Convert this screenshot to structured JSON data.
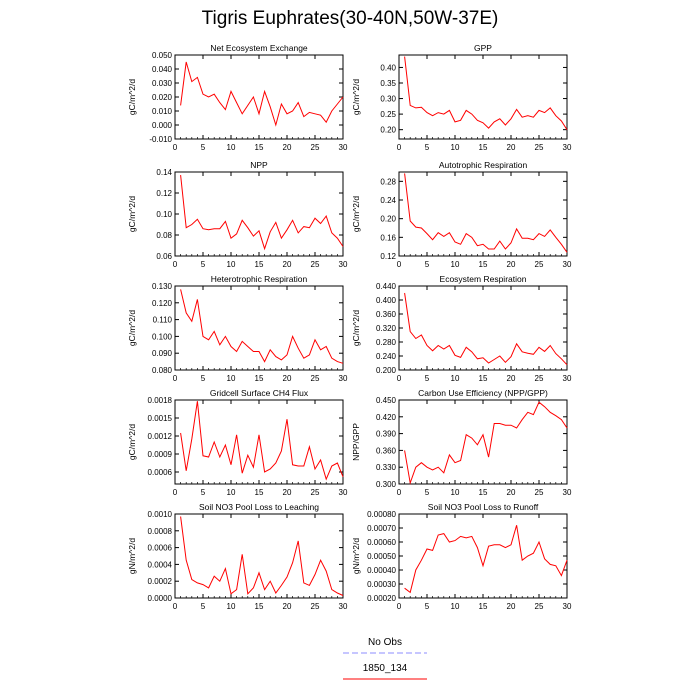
{
  "figure": {
    "title": "Tigris Euphrates(30-40N,50W-37E)"
  },
  "legend": {
    "entries": [
      {
        "label": "No Obs",
        "color": "#8c8cff",
        "style": "dashed"
      },
      {
        "label": "1850_134",
        "color": "#ff0000",
        "style": "solid"
      }
    ]
  },
  "chart_data": [
    {
      "type": "line",
      "title": "Net Ecosystem Exchange",
      "ylabel": "gC/m^2/d",
      "xlim": [
        0,
        30
      ],
      "ylim": [
        -0.01,
        0.05
      ],
      "yticks": [
        -0.01,
        0.0,
        0.01,
        0.02,
        0.03,
        0.04,
        0.05
      ],
      "ytick_labels": [
        "-0.010",
        "0.000",
        "0.010",
        "0.020",
        "0.030",
        "0.040",
        "0.050"
      ],
      "xticks": [
        0,
        5,
        10,
        15,
        20,
        25,
        30
      ],
      "series": [
        {
          "name": "1850_134",
          "x": [
            1,
            2,
            3,
            4,
            5,
            6,
            7,
            8,
            9,
            10,
            11,
            12,
            13,
            14,
            15,
            16,
            17,
            18,
            19,
            20,
            21,
            22,
            23,
            24,
            25,
            26,
            27,
            28,
            29,
            30
          ],
          "y": [
            0.014,
            0.045,
            0.031,
            0.034,
            0.022,
            0.02,
            0.022,
            0.016,
            0.011,
            0.024,
            0.016,
            0.008,
            0.014,
            0.02,
            0.008,
            0.024,
            0.013,
            0.0,
            0.015,
            0.008,
            0.01,
            0.016,
            0.006,
            0.009,
            0.008,
            0.007,
            0.002,
            0.01,
            0.015,
            0.02
          ]
        }
      ]
    },
    {
      "type": "line",
      "title": "GPP",
      "ylabel": "gC/m^2/d",
      "xlim": [
        0,
        30
      ],
      "ylim": [
        0.17,
        0.44
      ],
      "yticks": [
        0.2,
        0.25,
        0.3,
        0.35,
        0.4
      ],
      "ytick_labels": [
        "0.20",
        "0.25",
        "0.30",
        "0.35",
        "0.40"
      ],
      "xticks": [
        0,
        5,
        10,
        15,
        20,
        25,
        30
      ],
      "series": [
        {
          "name": "1850_134",
          "x": [
            1,
            2,
            3,
            4,
            5,
            6,
            7,
            8,
            9,
            10,
            11,
            12,
            13,
            14,
            15,
            16,
            17,
            18,
            19,
            20,
            21,
            22,
            23,
            24,
            25,
            26,
            27,
            28,
            29,
            30
          ],
          "y": [
            0.435,
            0.278,
            0.27,
            0.272,
            0.255,
            0.245,
            0.255,
            0.25,
            0.262,
            0.225,
            0.23,
            0.262,
            0.25,
            0.23,
            0.222,
            0.205,
            0.225,
            0.235,
            0.215,
            0.235,
            0.265,
            0.24,
            0.245,
            0.24,
            0.262,
            0.255,
            0.27,
            0.245,
            0.228,
            0.2
          ]
        }
      ]
    },
    {
      "type": "line",
      "title": "NPP",
      "ylabel": "gC/m^2/d",
      "xlim": [
        0,
        30
      ],
      "ylim": [
        0.06,
        0.14
      ],
      "yticks": [
        0.06,
        0.08,
        0.1,
        0.12,
        0.14
      ],
      "ytick_labels": [
        "0.06",
        "0.08",
        "0.10",
        "0.12",
        "0.14"
      ],
      "xticks": [
        0,
        5,
        10,
        15,
        20,
        25,
        30
      ],
      "series": [
        {
          "name": "1850_134",
          "x": [
            1,
            2,
            3,
            4,
            5,
            6,
            7,
            8,
            9,
            10,
            11,
            12,
            13,
            14,
            15,
            16,
            17,
            18,
            19,
            20,
            21,
            22,
            23,
            24,
            25,
            26,
            27,
            28,
            29,
            30
          ],
          "y": [
            0.137,
            0.087,
            0.09,
            0.095,
            0.086,
            0.085,
            0.086,
            0.086,
            0.093,
            0.077,
            0.081,
            0.094,
            0.087,
            0.079,
            0.084,
            0.067,
            0.083,
            0.092,
            0.077,
            0.085,
            0.094,
            0.082,
            0.088,
            0.087,
            0.096,
            0.091,
            0.098,
            0.082,
            0.077,
            0.069
          ]
        }
      ]
    },
    {
      "type": "line",
      "title": "Autotrophic Respiration",
      "ylabel": "gC/m^2/d",
      "xlim": [
        0,
        30
      ],
      "ylim": [
        0.12,
        0.3
      ],
      "yticks": [
        0.12,
        0.16,
        0.2,
        0.24,
        0.28
      ],
      "ytick_labels": [
        "0.12",
        "0.16",
        "0.20",
        "0.24",
        "0.28"
      ],
      "xticks": [
        0,
        5,
        10,
        15,
        20,
        25,
        30
      ],
      "series": [
        {
          "name": "1850_134",
          "x": [
            1,
            2,
            3,
            4,
            5,
            6,
            7,
            8,
            9,
            10,
            11,
            12,
            13,
            14,
            15,
            16,
            17,
            18,
            19,
            20,
            21,
            22,
            23,
            24,
            25,
            26,
            27,
            28,
            29,
            30
          ],
          "y": [
            0.297,
            0.195,
            0.182,
            0.18,
            0.168,
            0.155,
            0.17,
            0.162,
            0.17,
            0.15,
            0.145,
            0.168,
            0.16,
            0.142,
            0.145,
            0.135,
            0.135,
            0.152,
            0.135,
            0.148,
            0.178,
            0.158,
            0.158,
            0.155,
            0.168,
            0.162,
            0.176,
            0.16,
            0.145,
            0.128
          ]
        }
      ]
    },
    {
      "type": "line",
      "title": "Heterotrophic Respiration",
      "ylabel": "gC/m^2/d",
      "xlim": [
        0,
        30
      ],
      "ylim": [
        0.08,
        0.13
      ],
      "yticks": [
        0.08,
        0.09,
        0.1,
        0.11,
        0.12,
        0.13
      ],
      "ytick_labels": [
        "0.080",
        "0.090",
        "0.100",
        "0.110",
        "0.120",
        "0.130"
      ],
      "xticks": [
        0,
        5,
        10,
        15,
        20,
        25,
        30
      ],
      "series": [
        {
          "name": "1850_134",
          "x": [
            1,
            2,
            3,
            4,
            5,
            6,
            7,
            8,
            9,
            10,
            11,
            12,
            13,
            14,
            15,
            16,
            17,
            18,
            19,
            20,
            21,
            22,
            23,
            24,
            25,
            26,
            27,
            28,
            29,
            30
          ],
          "y": [
            0.128,
            0.114,
            0.109,
            0.122,
            0.1,
            0.098,
            0.103,
            0.095,
            0.1,
            0.094,
            0.091,
            0.097,
            0.094,
            0.091,
            0.091,
            0.085,
            0.092,
            0.088,
            0.086,
            0.089,
            0.1,
            0.093,
            0.087,
            0.089,
            0.098,
            0.092,
            0.094,
            0.087,
            0.085,
            0.084
          ]
        }
      ]
    },
    {
      "type": "line",
      "title": "Ecosystem Respiration",
      "ylabel": "gC/m^2/d",
      "xlim": [
        0,
        30
      ],
      "ylim": [
        0.2,
        0.44
      ],
      "yticks": [
        0.2,
        0.24,
        0.28,
        0.32,
        0.36,
        0.4,
        0.44
      ],
      "ytick_labels": [
        "0.200",
        "0.240",
        "0.280",
        "0.320",
        "0.360",
        "0.400",
        "0.440"
      ],
      "xticks": [
        0,
        5,
        10,
        15,
        20,
        25,
        30
      ],
      "series": [
        {
          "name": "1850_134",
          "x": [
            1,
            2,
            3,
            4,
            5,
            6,
            7,
            8,
            9,
            10,
            11,
            12,
            13,
            14,
            15,
            16,
            17,
            18,
            19,
            20,
            21,
            22,
            23,
            24,
            25,
            26,
            27,
            28,
            29,
            30
          ],
          "y": [
            0.42,
            0.31,
            0.29,
            0.3,
            0.27,
            0.255,
            0.27,
            0.26,
            0.27,
            0.242,
            0.236,
            0.265,
            0.252,
            0.232,
            0.235,
            0.22,
            0.23,
            0.24,
            0.222,
            0.238,
            0.275,
            0.252,
            0.248,
            0.245,
            0.265,
            0.253,
            0.27,
            0.247,
            0.232,
            0.215
          ]
        }
      ]
    },
    {
      "type": "line",
      "title": "Gridcell Surface CH4 Flux",
      "ylabel": "gC/m^2/d",
      "xlim": [
        0,
        30
      ],
      "ylim": [
        0.0004,
        0.0018
      ],
      "yticks": [
        0.0006,
        0.0009,
        0.0012,
        0.0015,
        0.0018
      ],
      "ytick_labels": [
        "0.0006",
        "0.0009",
        "0.0012",
        "0.0015",
        "0.0018"
      ],
      "xticks": [
        0,
        5,
        10,
        15,
        20,
        25,
        30
      ],
      "series": [
        {
          "name": "1850_134",
          "x": [
            1,
            2,
            3,
            4,
            5,
            6,
            7,
            8,
            9,
            10,
            11,
            12,
            13,
            14,
            15,
            16,
            17,
            18,
            19,
            20,
            21,
            22,
            23,
            24,
            25,
            26,
            27,
            28,
            29,
            30
          ],
          "y": [
            0.00125,
            0.00062,
            0.00115,
            0.00178,
            0.00087,
            0.00085,
            0.0011,
            0.00085,
            0.00105,
            0.00072,
            0.00122,
            0.00058,
            0.00088,
            0.00068,
            0.00122,
            0.0006,
            0.00065,
            0.00075,
            0.00095,
            0.00148,
            0.00072,
            0.0007,
            0.0007,
            0.00102,
            0.00065,
            0.0008,
            0.00048,
            0.0007,
            0.00075,
            0.00052
          ]
        }
      ]
    },
    {
      "type": "line",
      "title": "Carbon Use Efficiency (NPP/GPP)",
      "ylabel": "NPP/GPP",
      "xlim": [
        0,
        30
      ],
      "ylim": [
        0.3,
        0.45
      ],
      "yticks": [
        0.3,
        0.33,
        0.36,
        0.39,
        0.42,
        0.45
      ],
      "ytick_labels": [
        "0.300",
        "0.330",
        "0.360",
        "0.390",
        "0.420",
        "0.450"
      ],
      "xticks": [
        0,
        5,
        10,
        15,
        20,
        25,
        30
      ],
      "series": [
        {
          "name": "1850_134",
          "x": [
            1,
            2,
            3,
            4,
            5,
            6,
            7,
            8,
            9,
            10,
            11,
            12,
            13,
            14,
            15,
            16,
            17,
            18,
            19,
            20,
            21,
            22,
            23,
            24,
            25,
            26,
            27,
            28,
            29,
            30
          ],
          "y": [
            0.36,
            0.302,
            0.33,
            0.338,
            0.33,
            0.325,
            0.33,
            0.32,
            0.352,
            0.338,
            0.342,
            0.388,
            0.382,
            0.37,
            0.388,
            0.348,
            0.408,
            0.408,
            0.405,
            0.405,
            0.4,
            0.415,
            0.428,
            0.424,
            0.446,
            0.438,
            0.428,
            0.422,
            0.415,
            0.4
          ]
        }
      ]
    },
    {
      "type": "line",
      "title": "Soil NO3 Pool Loss to Leaching",
      "ylabel": "gN/m^2/d",
      "xlim": [
        0,
        30
      ],
      "ylim": [
        0.0,
        0.001
      ],
      "yticks": [
        0.0,
        0.0002,
        0.0004,
        0.0006,
        0.0008,
        0.001
      ],
      "ytick_labels": [
        "0.0000",
        "0.0002",
        "0.0004",
        "0.0006",
        "0.0008",
        "0.0010"
      ],
      "xticks": [
        0,
        5,
        10,
        15,
        20,
        25,
        30
      ],
      "series": [
        {
          "name": "1850_134",
          "x": [
            1,
            2,
            3,
            4,
            5,
            6,
            7,
            8,
            9,
            10,
            11,
            12,
            13,
            14,
            15,
            16,
            17,
            18,
            19,
            20,
            21,
            22,
            23,
            24,
            25,
            26,
            27,
            28,
            29,
            30
          ],
          "y": [
            0.00097,
            0.00045,
            0.00022,
            0.00018,
            0.00016,
            0.00012,
            0.00026,
            0.0002,
            0.00035,
            5e-05,
            0.0001,
            0.00052,
            5e-05,
            0.00012,
            0.0003,
            0.0001,
            0.0002,
            6e-05,
            0.00015,
            0.00025,
            0.00042,
            0.00068,
            0.00018,
            0.00015,
            0.00028,
            0.00045,
            0.00032,
            0.0001,
            6e-05,
            3e-05
          ]
        }
      ]
    },
    {
      "type": "line",
      "title": "Soil NO3 Pool Loss to Runoff",
      "ylabel": "gN/m^2/d",
      "xlim": [
        0,
        30
      ],
      "ylim": [
        0.0002,
        0.0008
      ],
      "yticks": [
        0.0002,
        0.0003,
        0.0004,
        0.0005,
        0.0006,
        0.0007,
        0.0008
      ],
      "ytick_labels": [
        "0.00020",
        "0.00030",
        "0.00040",
        "0.00050",
        "0.00060",
        "0.00070",
        "0.00080"
      ],
      "xticks": [
        0,
        5,
        10,
        15,
        20,
        25,
        30
      ],
      "series": [
        {
          "name": "1850_134",
          "x": [
            1,
            2,
            3,
            4,
            5,
            6,
            7,
            8,
            9,
            10,
            11,
            12,
            13,
            14,
            15,
            16,
            17,
            18,
            19,
            20,
            21,
            22,
            23,
            24,
            25,
            26,
            27,
            28,
            29,
            30
          ],
          "y": [
            0.00027,
            0.00024,
            0.0004,
            0.00047,
            0.00055,
            0.00054,
            0.00065,
            0.00066,
            0.0006,
            0.00061,
            0.00064,
            0.00063,
            0.00064,
            0.00056,
            0.00043,
            0.00057,
            0.00058,
            0.00058,
            0.00056,
            0.00058,
            0.00072,
            0.00047,
            0.0005,
            0.00052,
            0.0006,
            0.00048,
            0.00044,
            0.00043,
            0.00036,
            0.00047
          ]
        }
      ]
    }
  ]
}
